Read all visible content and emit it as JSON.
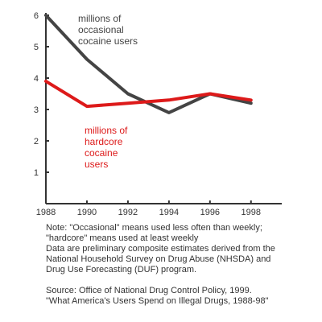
{
  "chart_data": {
    "type": "line",
    "x": [
      1988,
      1990,
      1992,
      1994,
      1996,
      1998
    ],
    "xlim": [
      1988,
      1999.5
    ],
    "ylim": [
      0,
      6
    ],
    "x_ticks": [
      "1988",
      "1990",
      "1992",
      "1994",
      "1996",
      "1998"
    ],
    "y_ticks": [
      "1",
      "2",
      "3",
      "4",
      "5",
      "6"
    ],
    "grid": false,
    "series": [
      {
        "name": "millions of occasional cocaine users",
        "label_lines": [
          "millions of",
          "occasional",
          "cocaine users"
        ],
        "color": "#444444",
        "values": [
          6.0,
          4.6,
          3.5,
          2.9,
          3.5,
          3.2
        ]
      },
      {
        "name": "millions of hardcore cocaine users",
        "label_lines": [
          "millions of",
          "hardcore",
          "cocaine",
          "users"
        ],
        "color": "#dd1a1a",
        "values": [
          3.9,
          3.1,
          3.2,
          3.3,
          3.5,
          3.3
        ]
      }
    ]
  },
  "notes": [
    "Note: \"Occasional\" means used less often than weekly;",
    "\"hardcore\" means used at least weekly",
    "Data are preliminary composite estimates derived from the",
    "National Household Survey on Drug Abuse (NHSDA) and",
    "Drug Use Forecasting (DUF) program."
  ],
  "source": [
    "Source: Office of National Drug Control Policy, 1999.",
    "\"What America's Users Spend on Illegal Drugs, 1988-98\""
  ]
}
